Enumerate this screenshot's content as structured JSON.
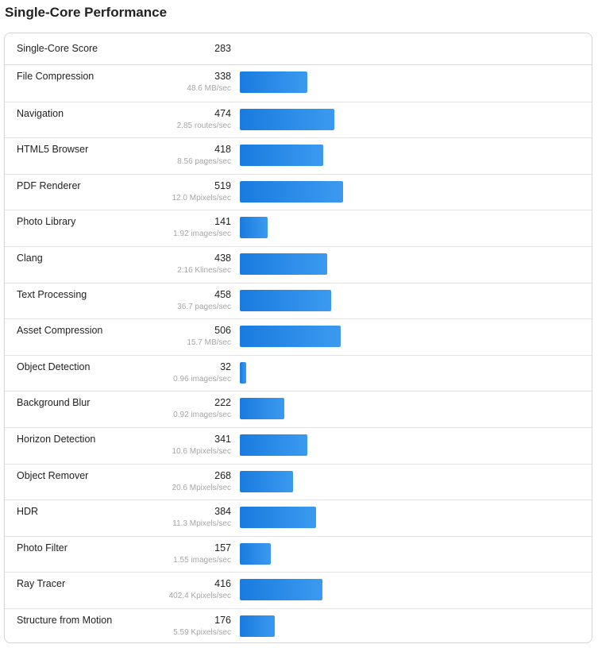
{
  "title": "Single-Core Performance",
  "summary": {
    "label": "Single-Core Score",
    "score": "283"
  },
  "bar_scale_max": 600,
  "bar_color": "#2188ea",
  "benchmarks": [
    {
      "name": "File Compression",
      "score": 338,
      "rate": "48.6 MB/sec"
    },
    {
      "name": "Navigation",
      "score": 474,
      "rate": "2.85 routes/sec"
    },
    {
      "name": "HTML5 Browser",
      "score": 418,
      "rate": "8.56 pages/sec"
    },
    {
      "name": "PDF Renderer",
      "score": 519,
      "rate": "12.0 Mpixels/sec"
    },
    {
      "name": "Photo Library",
      "score": 141,
      "rate": "1.92 images/sec"
    },
    {
      "name": "Clang",
      "score": 438,
      "rate": "2.16 Klines/sec"
    },
    {
      "name": "Text Processing",
      "score": 458,
      "rate": "36.7 pages/sec"
    },
    {
      "name": "Asset Compression",
      "score": 506,
      "rate": "15.7 MB/sec"
    },
    {
      "name": "Object Detection",
      "score": 32,
      "rate": "0.96 images/sec"
    },
    {
      "name": "Background Blur",
      "score": 222,
      "rate": "0.92 images/sec"
    },
    {
      "name": "Horizon Detection",
      "score": 341,
      "rate": "10.6 Mpixels/sec"
    },
    {
      "name": "Object Remover",
      "score": 268,
      "rate": "20.6 Mpixels/sec"
    },
    {
      "name": "HDR",
      "score": 384,
      "rate": "11.3 Mpixels/sec"
    },
    {
      "name": "Photo Filter",
      "score": 157,
      "rate": "1.55 images/sec"
    },
    {
      "name": "Ray Tracer",
      "score": 416,
      "rate": "402.4 Kpixels/sec"
    },
    {
      "name": "Structure from Motion",
      "score": 176,
      "rate": "5.59 Kpixels/sec"
    }
  ]
}
